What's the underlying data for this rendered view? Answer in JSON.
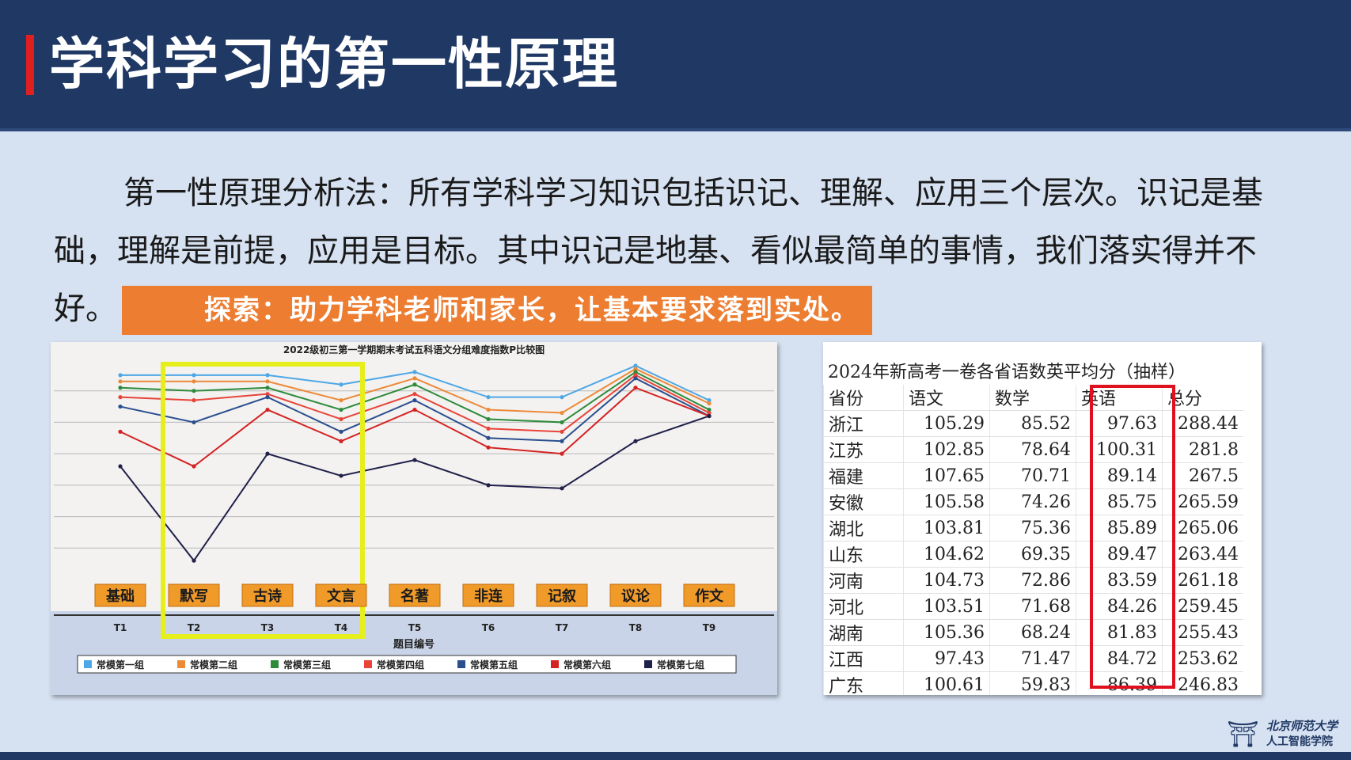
{
  "header": {
    "title": "学科学习的第一性原理"
  },
  "body": {
    "paragraph": "第一性原理分析法：所有学科学习知识包括识记、理解、应用三个层次。识记是基础，理解是前提，应用是目标。其中识记是地基、看似最简单的事情，我们落实得并不好。",
    "highlight": "探索：助力学科老师和家长，让基本要求落到实处。"
  },
  "chart_data": {
    "type": "line",
    "title": "2022级初三第一学期期末考试五科语文分组难度指数P比较图",
    "xlabel": "题目编号",
    "categories": [
      "T1",
      "T2",
      "T3",
      "T4",
      "T5",
      "T6",
      "T7",
      "T8",
      "T9"
    ],
    "category_labels": [
      "基础",
      "默写",
      "古诗",
      "文言",
      "名著",
      "非连",
      "记叙",
      "议论",
      "作文"
    ],
    "series": [
      {
        "name": "常模第一组",
        "color": "#4ea7e6",
        "values": [
          0.95,
          0.95,
          0.95,
          0.92,
          0.96,
          0.88,
          0.88,
          0.98,
          0.87
        ]
      },
      {
        "name": "常模第二组",
        "color": "#ed8a3a",
        "values": [
          0.93,
          0.93,
          0.93,
          0.87,
          0.94,
          0.84,
          0.83,
          0.97,
          0.86
        ]
      },
      {
        "name": "常模第三组",
        "color": "#2e8b3c",
        "values": [
          0.91,
          0.9,
          0.91,
          0.84,
          0.92,
          0.81,
          0.8,
          0.96,
          0.84
        ]
      },
      {
        "name": "常模第四组",
        "color": "#e8443a",
        "values": [
          0.88,
          0.87,
          0.89,
          0.81,
          0.89,
          0.78,
          0.77,
          0.95,
          0.83
        ]
      },
      {
        "name": "常模第五组",
        "color": "#2a4f8f",
        "values": [
          0.85,
          0.8,
          0.88,
          0.77,
          0.87,
          0.75,
          0.74,
          0.94,
          0.82
        ]
      },
      {
        "name": "常模第六组",
        "color": "#d42323",
        "values": [
          0.77,
          0.66,
          0.84,
          0.74,
          0.84,
          0.72,
          0.7,
          0.91,
          0.82
        ]
      },
      {
        "name": "常模第七组",
        "color": "#20204a",
        "values": [
          0.66,
          0.36,
          0.7,
          0.63,
          0.68,
          0.6,
          0.59,
          0.74,
          0.82
        ]
      }
    ],
    "highlight_box": [
      "T2",
      "T4"
    ]
  },
  "table": {
    "caption": "2024年新高考一卷各省语数英平均分（抽样）",
    "headers": [
      "省份",
      "语文",
      "数学",
      "英语",
      "总分"
    ],
    "rows": [
      [
        "浙江",
        "105.29",
        "85.52",
        "97.63",
        "288.44"
      ],
      [
        "江苏",
        "102.85",
        "78.64",
        "100.31",
        "281.8"
      ],
      [
        "福建",
        "107.65",
        "70.71",
        "89.14",
        "267.5"
      ],
      [
        "安徽",
        "105.58",
        "74.26",
        "85.75",
        "265.59"
      ],
      [
        "湖北",
        "103.81",
        "75.36",
        "85.89",
        "265.06"
      ],
      [
        "山东",
        "104.62",
        "69.35",
        "89.47",
        "263.44"
      ],
      [
        "河南",
        "104.73",
        "72.86",
        "83.59",
        "261.18"
      ],
      [
        "河北",
        "103.51",
        "71.68",
        "84.26",
        "259.45"
      ],
      [
        "湖南",
        "105.36",
        "68.24",
        "81.83",
        "255.43"
      ],
      [
        "江西",
        "97.43",
        "71.47",
        "84.72",
        "253.62"
      ],
      [
        "广东",
        "100.61",
        "59.83",
        "86.39",
        "246.83"
      ]
    ]
  },
  "logo": {
    "line1": "北京师范大学",
    "line2": "人工智能学院",
    "icon": "bnu-logo-icon"
  }
}
